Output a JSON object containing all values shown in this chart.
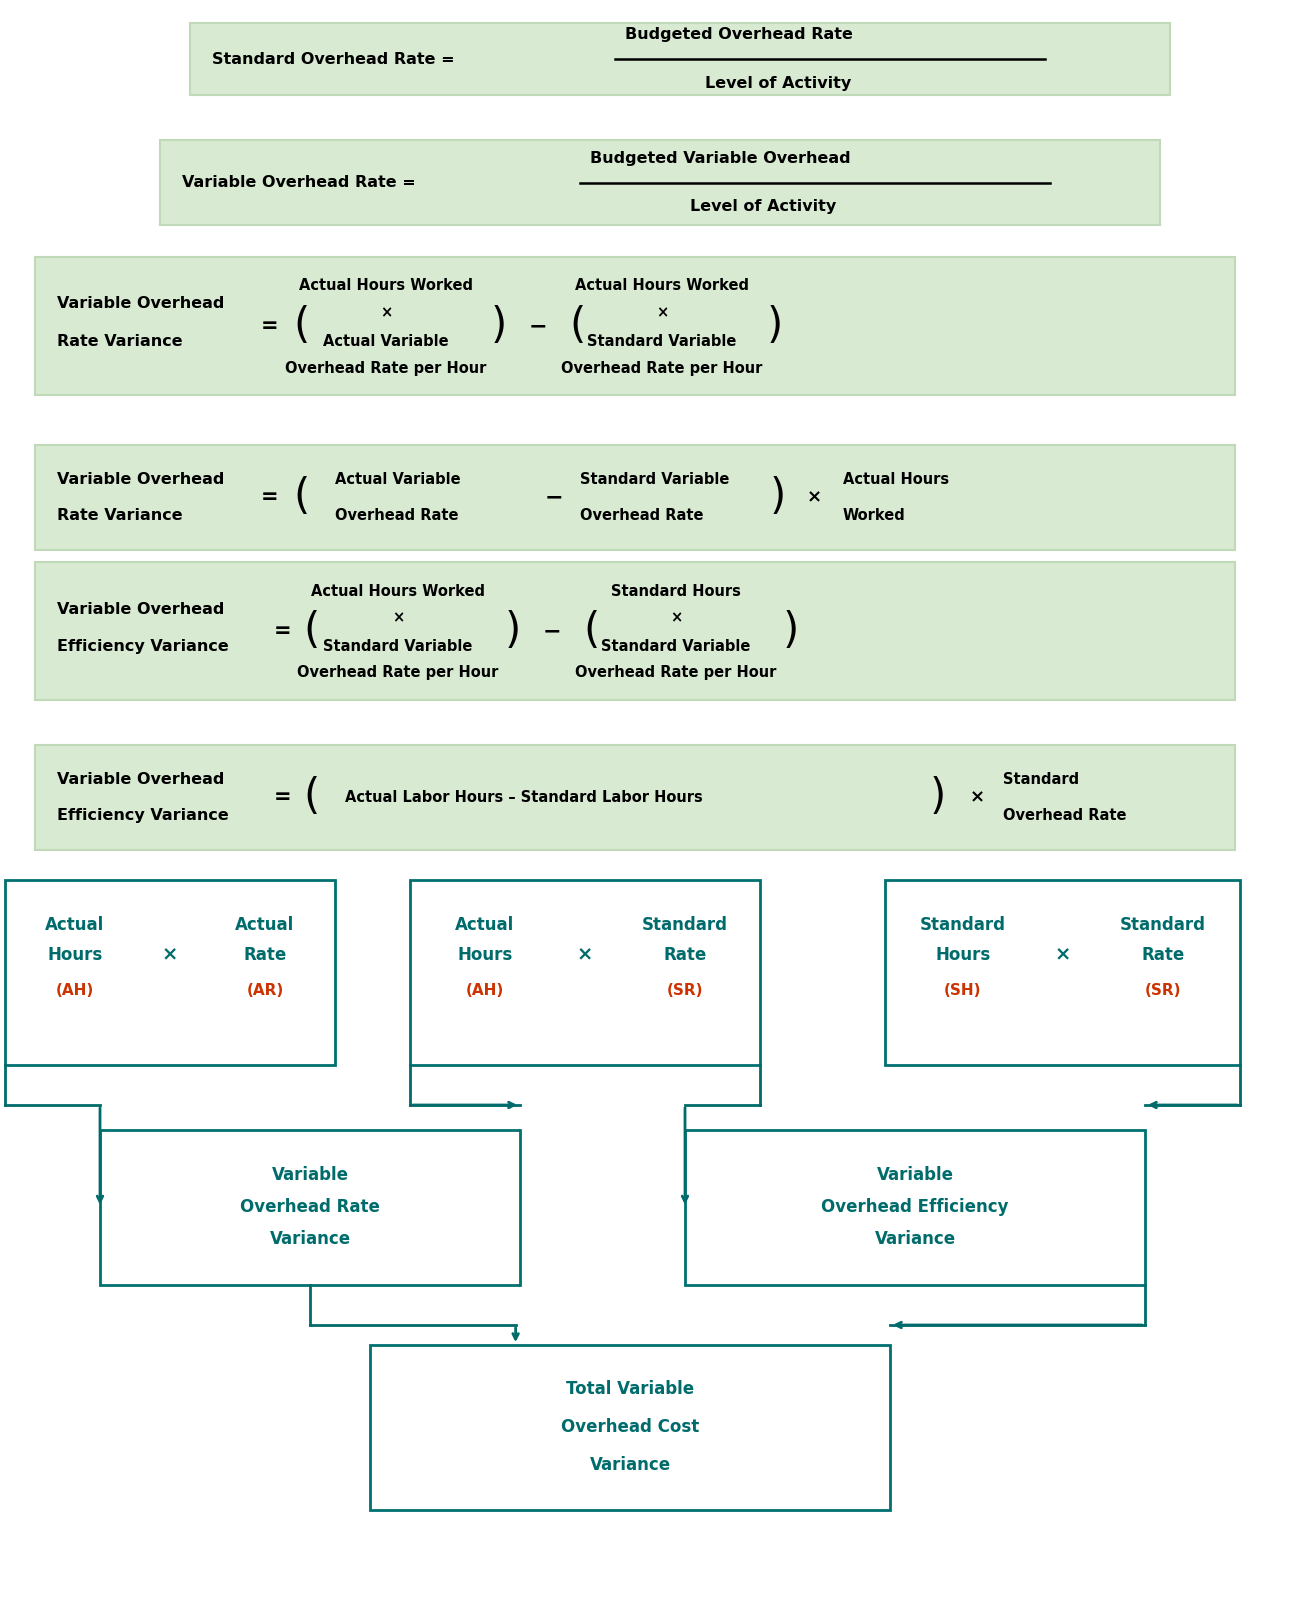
{
  "bg_color": "#ffffff",
  "green_box_color": "#d9ead3",
  "green_box_edge": "#c0d9b8",
  "teal_box_color": "#ffffff",
  "teal_box_edge": "#007070",
  "teal_text_color": "#006b6b",
  "red_text_color": "#cc3300",
  "black_text_color": "#000000",
  "arrow_color": "#006b6b",
  "formula1_left": "Standard Overhead Rate =",
  "formula1_num": "Budgeted Overhead Rate",
  "formula1_den": "Level of Activity",
  "formula2_left": "Variable Overhead Rate =",
  "formula2_num": "Budgeted Variable Overhead",
  "formula2_den": "Level of Activity",
  "formula3_left1": "Variable Overhead",
  "formula3_left2": "Rate Variance",
  "formula3_num1_l1": "Actual Hours Worked",
  "formula3_num1_l2": "×",
  "formula3_num1_l3": "Actual Variable",
  "formula3_num1_l4": "Overhead Rate per Hour",
  "formula3_num2_l1": "Actual Hours Worked",
  "formula3_num2_l2": "×",
  "formula3_num2_l3": "Standard Variable",
  "formula3_num2_l4": "Overhead Rate per Hour",
  "formula4_left1": "Variable Overhead",
  "formula4_left2": "Rate Variance",
  "formula4_t1a": "Actual Variable",
  "formula4_t1b": "Overhead Rate",
  "formula4_t2a": "Standard Variable",
  "formula4_t2b": "Overhead Rate",
  "formula4_t3a": "Actual Hours",
  "formula4_t3b": "Worked",
  "formula5_left1": "Variable Overhead",
  "formula5_left2": "Efficiency Variance",
  "formula5_num1_l1": "Actual Hours Worked",
  "formula5_num1_l2": "×",
  "formula5_num1_l3": "Standard Variable",
  "formula5_num1_l4": "Overhead Rate per Hour",
  "formula5_num2_l1": "Standard Hours",
  "formula5_num2_l2": "×",
  "formula5_num2_l3": "Standard Variable",
  "formula5_num2_l4": "Overhead Rate per Hour",
  "formula6_left1": "Variable Overhead",
  "formula6_left2": "Efficiency Variance",
  "formula6_inner": "Actual Labor Hours – Standard Labor Hours",
  "formula6_t2a": "Standard",
  "formula6_t2b": "Overhead Rate",
  "box1_l1": "Actual",
  "box1_l2": "Hours",
  "box1_ah": "(AH)",
  "box1_x": "×",
  "box1_l3": "Actual",
  "box1_l4": "Rate",
  "box1_ar": "(AR)",
  "box2_l1": "Actual",
  "box2_l2": "Hours",
  "box2_ah": "(AH)",
  "box2_x": "×",
  "box2_l3": "Standard",
  "box2_l4": "Rate",
  "box2_sr": "(SR)",
  "box3_l1": "Standard",
  "box3_l2": "Hours",
  "box3_sh": "(SH)",
  "box3_x": "×",
  "box3_l3": "Standard",
  "box3_l4": "Rate",
  "box3_sr": "(SR)",
  "mid1_l1": "Variable",
  "mid1_l2": "Overhead Rate",
  "mid1_l3": "Variance",
  "mid2_l1": "Variable",
  "mid2_l2": "Overhead Efficiency",
  "mid2_l3": "Variance",
  "bot_l1": "Total Variable",
  "bot_l2": "Overhead Cost",
  "bot_l3": "Variance"
}
